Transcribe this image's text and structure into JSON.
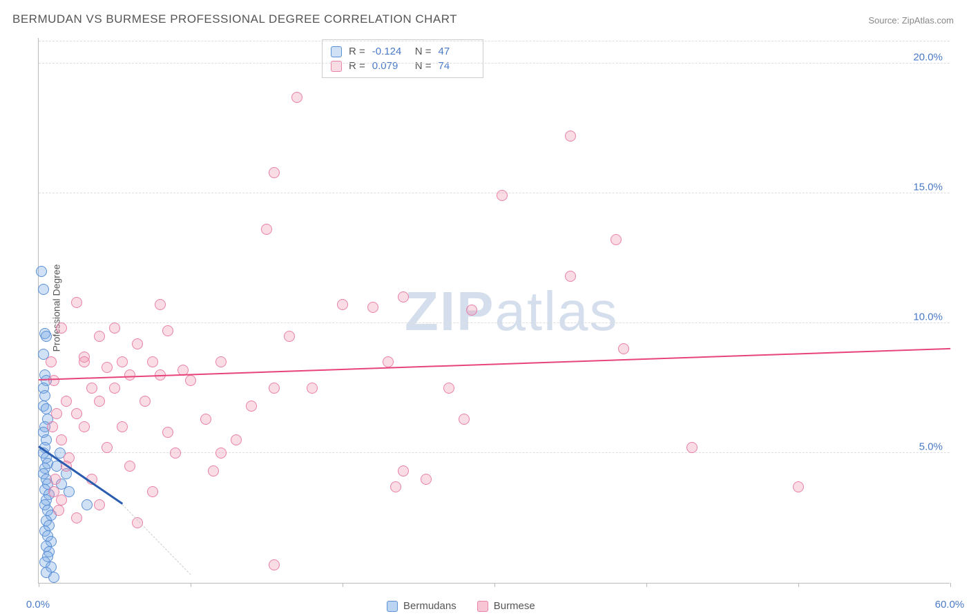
{
  "title": "BERMUDAN VS BURMESE PROFESSIONAL DEGREE CORRELATION CHART",
  "source": "Source: ZipAtlas.com",
  "y_axis_label": "Professional Degree",
  "watermark_a": "ZIP",
  "watermark_b": "atlas",
  "chart": {
    "type": "scatter",
    "xlim": [
      0,
      60
    ],
    "ylim": [
      0,
      21
    ],
    "x_ticks": [
      0,
      10,
      20,
      30,
      40,
      50,
      60
    ],
    "x_tick_labels": [
      "0.0%",
      "",
      "",
      "",
      "",
      "",
      "60.0%"
    ],
    "y_ticks": [
      5,
      10,
      15,
      20
    ],
    "y_tick_labels": [
      "5.0%",
      "10.0%",
      "15.0%",
      "20.0%"
    ],
    "background_color": "#ffffff",
    "grid_color": "#dddddd",
    "axis_color": "#bbbbbb",
    "label_color": "#4a7ac8",
    "marker_size": 16,
    "series": [
      {
        "name": "Bermudans",
        "fill": "rgba(120,170,230,0.35)",
        "stroke": "#5a8fd6",
        "trend_color": "#2a5db0",
        "trend": {
          "x1": 0,
          "y1": 5.2,
          "x2": 5.5,
          "y2": 3.0
        },
        "trend_dash": {
          "x1": 5.5,
          "y1": 3.0,
          "x2": 10.0,
          "y2": 0.3
        },
        "R": "-0.124",
        "N": "47",
        "points": [
          [
            0.2,
            12.0
          ],
          [
            0.3,
            11.3
          ],
          [
            0.4,
            9.6
          ],
          [
            0.5,
            9.5
          ],
          [
            0.3,
            8.8
          ],
          [
            0.4,
            8.0
          ],
          [
            0.5,
            7.8
          ],
          [
            0.3,
            7.5
          ],
          [
            0.4,
            7.2
          ],
          [
            0.3,
            6.8
          ],
          [
            0.5,
            6.7
          ],
          [
            0.6,
            6.3
          ],
          [
            0.4,
            6.0
          ],
          [
            0.3,
            5.8
          ],
          [
            0.5,
            5.5
          ],
          [
            0.4,
            5.2
          ],
          [
            0.3,
            5.0
          ],
          [
            0.5,
            4.8
          ],
          [
            0.6,
            4.6
          ],
          [
            0.4,
            4.4
          ],
          [
            0.3,
            4.2
          ],
          [
            0.5,
            4.0
          ],
          [
            0.6,
            3.8
          ],
          [
            0.4,
            3.6
          ],
          [
            0.7,
            3.4
          ],
          [
            0.5,
            3.2
          ],
          [
            0.4,
            3.0
          ],
          [
            0.6,
            2.8
          ],
          [
            0.8,
            2.6
          ],
          [
            0.5,
            2.4
          ],
          [
            0.7,
            2.2
          ],
          [
            0.4,
            2.0
          ],
          [
            0.6,
            1.8
          ],
          [
            0.8,
            1.6
          ],
          [
            0.5,
            1.4
          ],
          [
            0.7,
            1.2
          ],
          [
            0.6,
            1.0
          ],
          [
            0.4,
            0.8
          ],
          [
            0.8,
            0.6
          ],
          [
            0.5,
            0.4
          ],
          [
            1.0,
            0.2
          ],
          [
            1.2,
            4.5
          ],
          [
            1.5,
            3.8
          ],
          [
            1.8,
            4.2
          ],
          [
            2.0,
            3.5
          ],
          [
            3.2,
            3.0
          ],
          [
            1.4,
            5.0
          ]
        ]
      },
      {
        "name": "Burmese",
        "fill": "rgba(240,140,170,0.30)",
        "stroke": "#e880a8",
        "trend_color": "#e8447a",
        "trend": {
          "x1": 0,
          "y1": 7.8,
          "x2": 60,
          "y2": 9.0
        },
        "R": "0.079",
        "N": "74",
        "points": [
          [
            17.0,
            18.7
          ],
          [
            35.0,
            17.2
          ],
          [
            15.5,
            15.8
          ],
          [
            30.5,
            14.9
          ],
          [
            15.0,
            13.6
          ],
          [
            38.0,
            13.2
          ],
          [
            35.0,
            11.8
          ],
          [
            24.0,
            11.0
          ],
          [
            2.5,
            10.8
          ],
          [
            8.0,
            10.7
          ],
          [
            20.0,
            10.7
          ],
          [
            22.0,
            10.6
          ],
          [
            28.5,
            10.5
          ],
          [
            1.5,
            9.8
          ],
          [
            5.0,
            9.8
          ],
          [
            8.5,
            9.7
          ],
          [
            4.0,
            9.5
          ],
          [
            16.5,
            9.5
          ],
          [
            6.5,
            9.2
          ],
          [
            38.5,
            9.0
          ],
          [
            3.0,
            8.7
          ],
          [
            5.5,
            8.5
          ],
          [
            7.5,
            8.5
          ],
          [
            12.0,
            8.5
          ],
          [
            23.0,
            8.5
          ],
          [
            4.5,
            8.3
          ],
          [
            6.0,
            8.0
          ],
          [
            8.0,
            8.0
          ],
          [
            10.0,
            7.8
          ],
          [
            3.5,
            7.5
          ],
          [
            5.0,
            7.5
          ],
          [
            15.5,
            7.5
          ],
          [
            18.0,
            7.5
          ],
          [
            27.0,
            7.5
          ],
          [
            1.8,
            7.0
          ],
          [
            4.0,
            7.0
          ],
          [
            7.0,
            7.0
          ],
          [
            2.5,
            6.5
          ],
          [
            11.0,
            6.3
          ],
          [
            28.0,
            6.3
          ],
          [
            3.0,
            6.0
          ],
          [
            5.5,
            6.0
          ],
          [
            8.5,
            5.8
          ],
          [
            13.0,
            5.5
          ],
          [
            4.5,
            5.2
          ],
          [
            9.0,
            5.0
          ],
          [
            12.0,
            5.0
          ],
          [
            43.0,
            5.2
          ],
          [
            2.0,
            4.8
          ],
          [
            6.0,
            4.5
          ],
          [
            11.5,
            4.3
          ],
          [
            24.0,
            4.3
          ],
          [
            25.5,
            4.0
          ],
          [
            3.5,
            4.0
          ],
          [
            23.5,
            3.7
          ],
          [
            50.0,
            3.7
          ],
          [
            7.5,
            3.5
          ],
          [
            1.5,
            3.2
          ],
          [
            4.0,
            3.0
          ],
          [
            2.5,
            2.5
          ],
          [
            6.5,
            2.3
          ],
          [
            1.0,
            7.8
          ],
          [
            1.2,
            6.5
          ],
          [
            1.5,
            5.5
          ],
          [
            1.8,
            4.5
          ],
          [
            1.0,
            3.5
          ],
          [
            1.3,
            2.8
          ],
          [
            0.8,
            8.5
          ],
          [
            0.9,
            6.0
          ],
          [
            1.1,
            4.0
          ],
          [
            15.5,
            0.7
          ],
          [
            3.0,
            8.5
          ],
          [
            9.5,
            8.2
          ],
          [
            14.0,
            6.8
          ]
        ]
      }
    ]
  },
  "bottom_legend": [
    {
      "label": "Bermudans",
      "fill": "rgba(120,170,230,0.5)",
      "stroke": "#5a8fd6"
    },
    {
      "label": "Burmese",
      "fill": "rgba(240,140,170,0.5)",
      "stroke": "#e880a8"
    }
  ]
}
